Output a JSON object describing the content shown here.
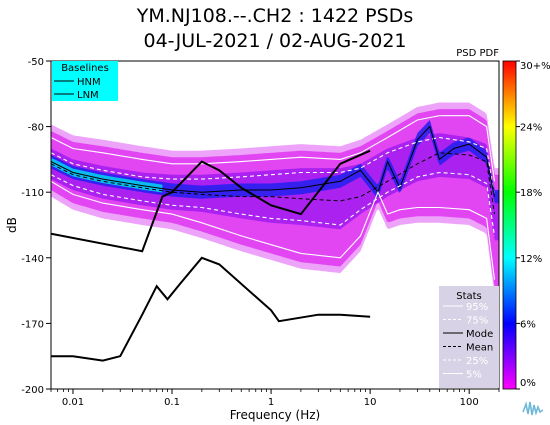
{
  "chart_data": {
    "type": "heatmap",
    "title": "YM.NJ108.--.CH2 : 1422 PSDs",
    "subtitle": "04-JUL-2021 / 02-AUG-2021",
    "xlabel": "Frequency (Hz)",
    "ylabel": "dB",
    "x_scale": "log",
    "xlim": [
      0.006,
      200
    ],
    "ylim": [
      -200,
      -50
    ],
    "x_ticks": [
      {
        "value": 0.01,
        "label": "0.01"
      },
      {
        "value": 0.1,
        "label": "0.1"
      },
      {
        "value": 1,
        "label": "1"
      },
      {
        "value": 10,
        "label": "10"
      },
      {
        "value": 100,
        "label": "100"
      }
    ],
    "y_ticks": [
      {
        "value": -50,
        "label": "-50"
      },
      {
        "value": -80,
        "label": "-80"
      },
      {
        "value": -110,
        "label": "-110"
      },
      {
        "value": -140,
        "label": "-140"
      },
      {
        "value": -170,
        "label": "-170"
      },
      {
        "value": -200,
        "label": "-200"
      }
    ],
    "colorbar": {
      "title": "PSD PDF",
      "ticks": [
        "0%",
        "6%",
        "12%",
        "18%",
        "24%",
        "30+%"
      ],
      "colors": [
        "#ff00ff",
        "#0000ff",
        "#00ffff",
        "#00ff00",
        "#ffff00",
        "#ff0000"
      ]
    },
    "baselines": {
      "title": "Baselines",
      "items": [
        "HNM",
        "LNM"
      ],
      "background": "#00ffff",
      "HNM": {
        "freq": [
          0.006,
          0.05,
          0.08,
          0.1,
          0.2,
          0.3,
          0.5,
          1,
          2,
          5,
          10
        ],
        "db": [
          -129,
          -137,
          -112,
          -110,
          -96,
          -100,
          -108,
          -116,
          -120,
          -97,
          -91
        ]
      },
      "LNM": {
        "freq": [
          0.006,
          0.01,
          0.02,
          0.03,
          0.05,
          0.07,
          0.09,
          0.12,
          0.2,
          0.3,
          1,
          1.2,
          3,
          5,
          10
        ],
        "db": [
          -185,
          -185,
          -187,
          -185,
          -166,
          -153,
          -159,
          -152,
          -140,
          -143,
          -164,
          -169,
          -166,
          -166,
          -167
        ]
      }
    },
    "stats": {
      "title": "Stats",
      "items": [
        {
          "label": "95%",
          "style": "white-solid"
        },
        {
          "label": "75%",
          "style": "white-dashed"
        },
        {
          "label": "Mode",
          "style": "black-solid"
        },
        {
          "label": "Mean",
          "style": "black-dashed"
        },
        {
          "label": "25%",
          "style": "white-dashed"
        },
        {
          "label": "5%",
          "style": "white-solid"
        }
      ],
      "background": "#d8d2e6"
    },
    "series": [
      {
        "name": "95%",
        "freq": [
          0.006,
          0.01,
          0.02,
          0.05,
          0.1,
          0.2,
          0.5,
          1,
          2,
          5,
          8,
          15,
          30,
          50,
          100,
          150,
          180
        ],
        "db": [
          -85,
          -90,
          -92,
          -95,
          -97,
          -97,
          -96,
          -95,
          -94,
          -95,
          -92,
          -85,
          -77,
          -75,
          -75,
          -80,
          -105
        ]
      },
      {
        "name": "75%",
        "freq": [
          0.006,
          0.01,
          0.02,
          0.05,
          0.1,
          0.2,
          0.5,
          1,
          2,
          5,
          8,
          15,
          30,
          50,
          100,
          150,
          180
        ],
        "db": [
          -92,
          -97,
          -100,
          -103,
          -104,
          -104,
          -103,
          -102,
          -101,
          -101,
          -99,
          -92,
          -87,
          -85,
          -87,
          -90,
          -112
        ]
      },
      {
        "name": "Mode",
        "freq": [
          0.006,
          0.01,
          0.02,
          0.05,
          0.1,
          0.2,
          0.5,
          1,
          2,
          5,
          8,
          12,
          15,
          20,
          30,
          40,
          50,
          70,
          100,
          150,
          180
        ],
        "db": [
          -96,
          -101,
          -104,
          -107,
          -109,
          -110,
          -109,
          -109,
          -108,
          -105,
          -100,
          -110,
          -96,
          -108,
          -86,
          -80,
          -95,
          -90,
          -88,
          -94,
          -112
        ]
      },
      {
        "name": "Mean",
        "freq": [
          0.006,
          0.01,
          0.02,
          0.05,
          0.1,
          0.2,
          0.5,
          1,
          2,
          5,
          8,
          15,
          30,
          50,
          100,
          150,
          180
        ],
        "db": [
          -97,
          -102,
          -105,
          -108,
          -110,
          -111,
          -112,
          -112,
          -113,
          -114,
          -112,
          -105,
          -97,
          -92,
          -93,
          -96,
          -120
        ]
      },
      {
        "name": "25%",
        "freq": [
          0.006,
          0.01,
          0.02,
          0.05,
          0.1,
          0.2,
          0.5,
          1,
          2,
          5,
          8,
          15,
          30,
          50,
          100,
          150,
          180
        ],
        "db": [
          -102,
          -107,
          -111,
          -114,
          -116,
          -117,
          -120,
          -122,
          -123,
          -125,
          -118,
          -110,
          -103,
          -101,
          -102,
          -106,
          -130
        ]
      },
      {
        "name": "5%",
        "freq": [
          0.006,
          0.01,
          0.02,
          0.05,
          0.1,
          0.2,
          0.5,
          1,
          2,
          5,
          8,
          12,
          15,
          20,
          30,
          50,
          100,
          150,
          180
        ],
        "db": [
          -105,
          -111,
          -115,
          -118,
          -120,
          -124,
          -130,
          -134,
          -138,
          -140,
          -130,
          -110,
          -120,
          -118,
          -117,
          -117,
          -118,
          -122,
          -150
        ]
      }
    ]
  }
}
